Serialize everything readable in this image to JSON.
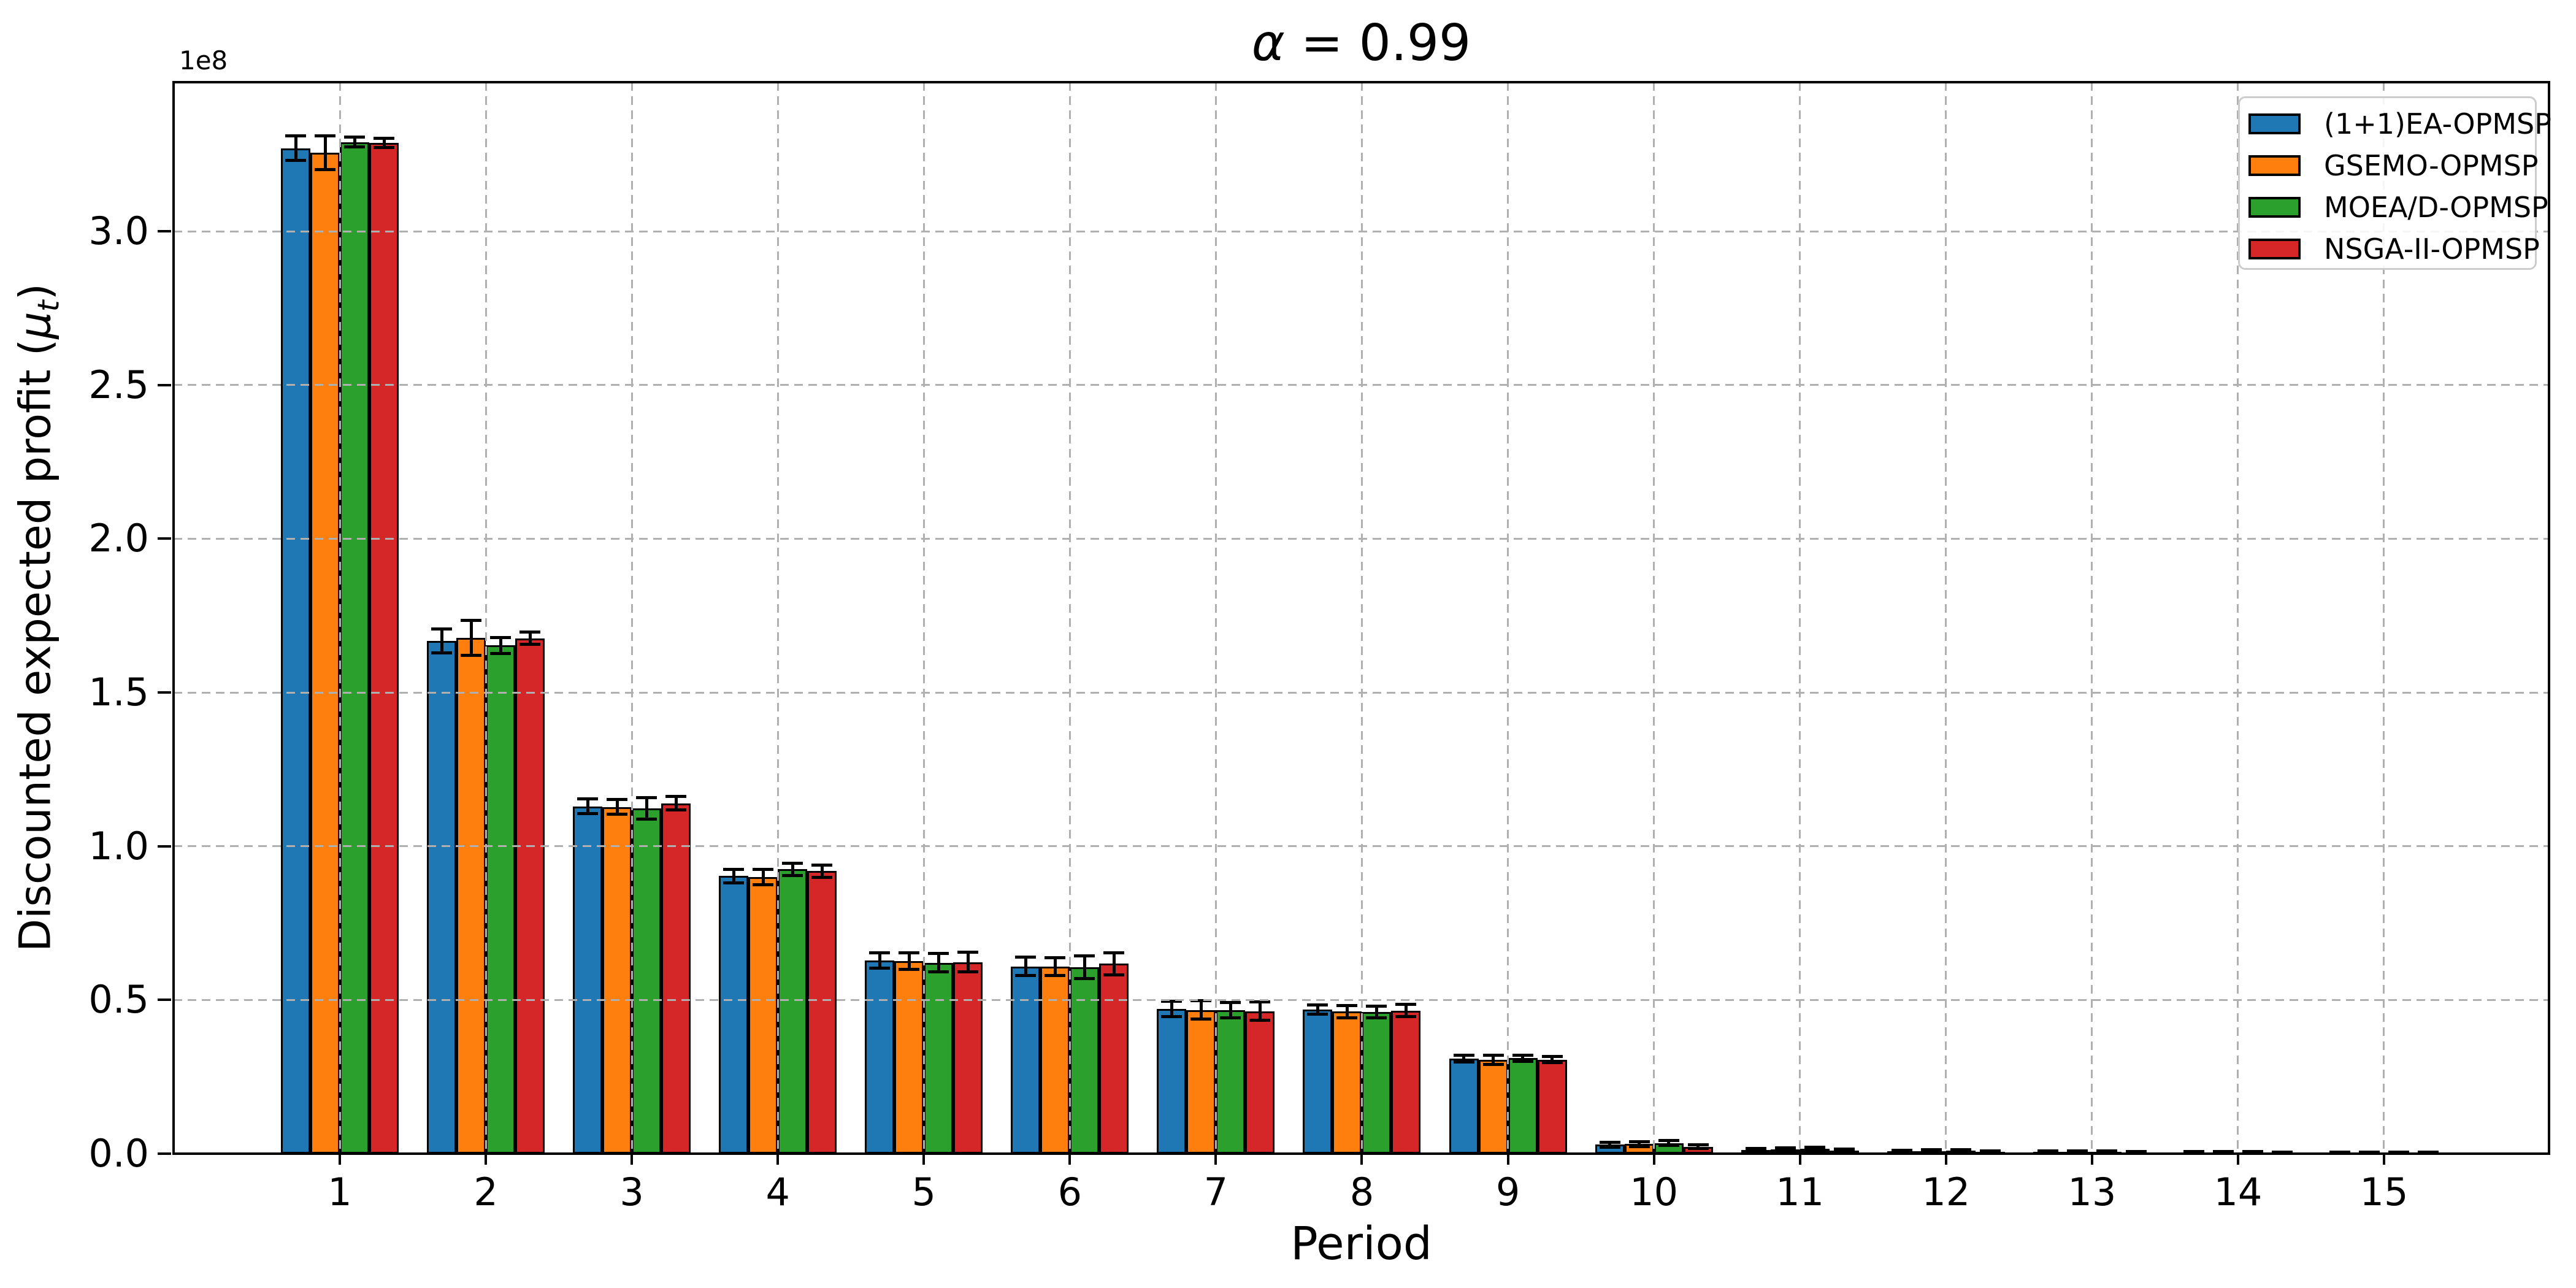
{
  "figure": {
    "title_alpha": "α",
    "title_eq": " = 0.99",
    "offset_label": "1e8",
    "xlabel": "Period",
    "ylabel_prefix": "Discounted expected profit (",
    "ylabel_mu": "μ",
    "ylabel_sub": "t",
    "ylabel_close": ")"
  },
  "chart_data": {
    "type": "bar",
    "title": "α = 0.99",
    "xlabel": "Period",
    "ylabel": "Discounted expected profit (μ_t)",
    "y_offset_label": "1e8",
    "ylim": [
      0,
      348500000
    ],
    "grid": true,
    "legend_position": "upper right",
    "categories": [
      "1",
      "2",
      "3",
      "4",
      "5",
      "6",
      "7",
      "8",
      "9",
      "10",
      "11",
      "12",
      "13",
      "14",
      "15"
    ],
    "yticks": [
      {
        "value": 0,
        "label": "0.0"
      },
      {
        "value": 50000000,
        "label": "0.5"
      },
      {
        "value": 100000000,
        "label": "1.0"
      },
      {
        "value": 150000000,
        "label": "1.5"
      },
      {
        "value": 200000000,
        "label": "2.0"
      },
      {
        "value": 250000000,
        "label": "2.5"
      },
      {
        "value": 300000000,
        "label": "3.0"
      }
    ],
    "series": [
      {
        "name": "(1+1)EA-OPMSP",
        "color": "#1f77b4",
        "values": [
          327000000,
          166700000,
          113000000,
          90300000,
          62800000,
          60900000,
          47100000,
          46800000,
          31000000,
          2900000,
          1200000,
          750000,
          500000,
          400000,
          300000
        ],
        "errors": [
          4000000,
          3900000,
          2400000,
          2200000,
          2500000,
          3000000,
          2500000,
          1500000,
          1100000,
          800000,
          500000,
          400000,
          300000,
          250000,
          200000
        ]
      },
      {
        "name": "GSEMO-OPMSP",
        "color": "#ff7f0e",
        "values": [
          325500000,
          167800000,
          112800000,
          90000000,
          62700000,
          60800000,
          46700000,
          46200000,
          30600000,
          3100000,
          1300000,
          800000,
          500000,
          400000,
          300000
        ],
        "errors": [
          5500000,
          5700000,
          2400000,
          2500000,
          2700000,
          2900000,
          3000000,
          2000000,
          1500000,
          800000,
          500000,
          400000,
          300000,
          250000,
          200000
        ]
      },
      {
        "name": "MOEA/D-OPMSP",
        "color": "#2ca02c",
        "values": [
          329000000,
          165300000,
          112300000,
          92500000,
          62100000,
          60700000,
          46700000,
          46100000,
          31100000,
          3400000,
          1600000,
          950000,
          600000,
          450000,
          350000
        ],
        "errors": [
          1600000,
          2600000,
          3500000,
          2000000,
          3000000,
          3700000,
          2500000,
          1900000,
          1000000,
          800000,
          500000,
          400000,
          300000,
          250000,
          200000
        ]
      },
      {
        "name": "NSGA-II-OPMSP",
        "color": "#d62728",
        "values": [
          328700000,
          167600000,
          114000000,
          91900000,
          62300000,
          61800000,
          46300000,
          46500000,
          30600000,
          2200000,
          1000000,
          600000,
          450000,
          350000,
          280000
        ],
        "errors": [
          1500000,
          2000000,
          2200000,
          2000000,
          3200000,
          3600000,
          3000000,
          2000000,
          1000000,
          600000,
          400000,
          300000,
          250000,
          200000,
          150000
        ]
      }
    ]
  }
}
